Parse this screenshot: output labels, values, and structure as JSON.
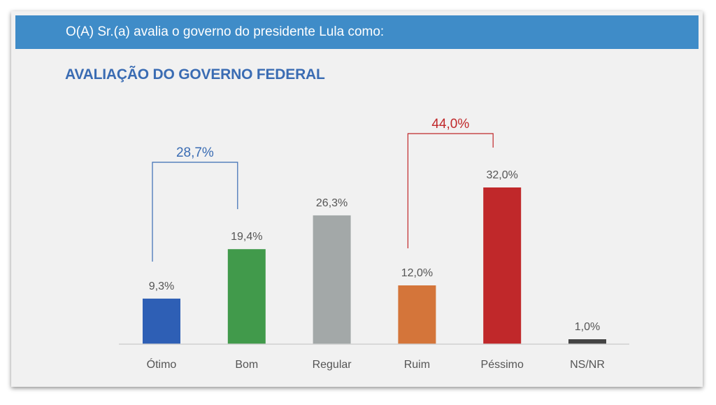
{
  "header": {
    "question": "O(A) Sr.(a) avalia o governo do presidente Lula como:"
  },
  "chart_data": {
    "type": "bar",
    "title": "AVALIAÇÃO DO GOVERNO FEDERAL",
    "categories": [
      "Ótimo",
      "Bom",
      "Regular",
      "Ruim",
      "Péssimo",
      "NS/NR"
    ],
    "values": [
      9.3,
      19.4,
      26.3,
      12.0,
      32.0,
      1.0
    ],
    "value_labels": [
      "9,3%",
      "19,4%",
      "26,3%",
      "12,0%",
      "32,0%",
      "1,0%"
    ],
    "colors": [
      "#2e5fb5",
      "#419a4b",
      "#a3a8a8",
      "#d4753a",
      "#c0282a",
      "#444444"
    ],
    "groups": [
      {
        "label": "28,7%",
        "from": 0,
        "to": 1,
        "color": "#3a6cb3"
      },
      {
        "label": "44,0%",
        "from": 3,
        "to": 4,
        "color": "#c0282a"
      }
    ],
    "ylim": [
      0,
      32
    ]
  }
}
